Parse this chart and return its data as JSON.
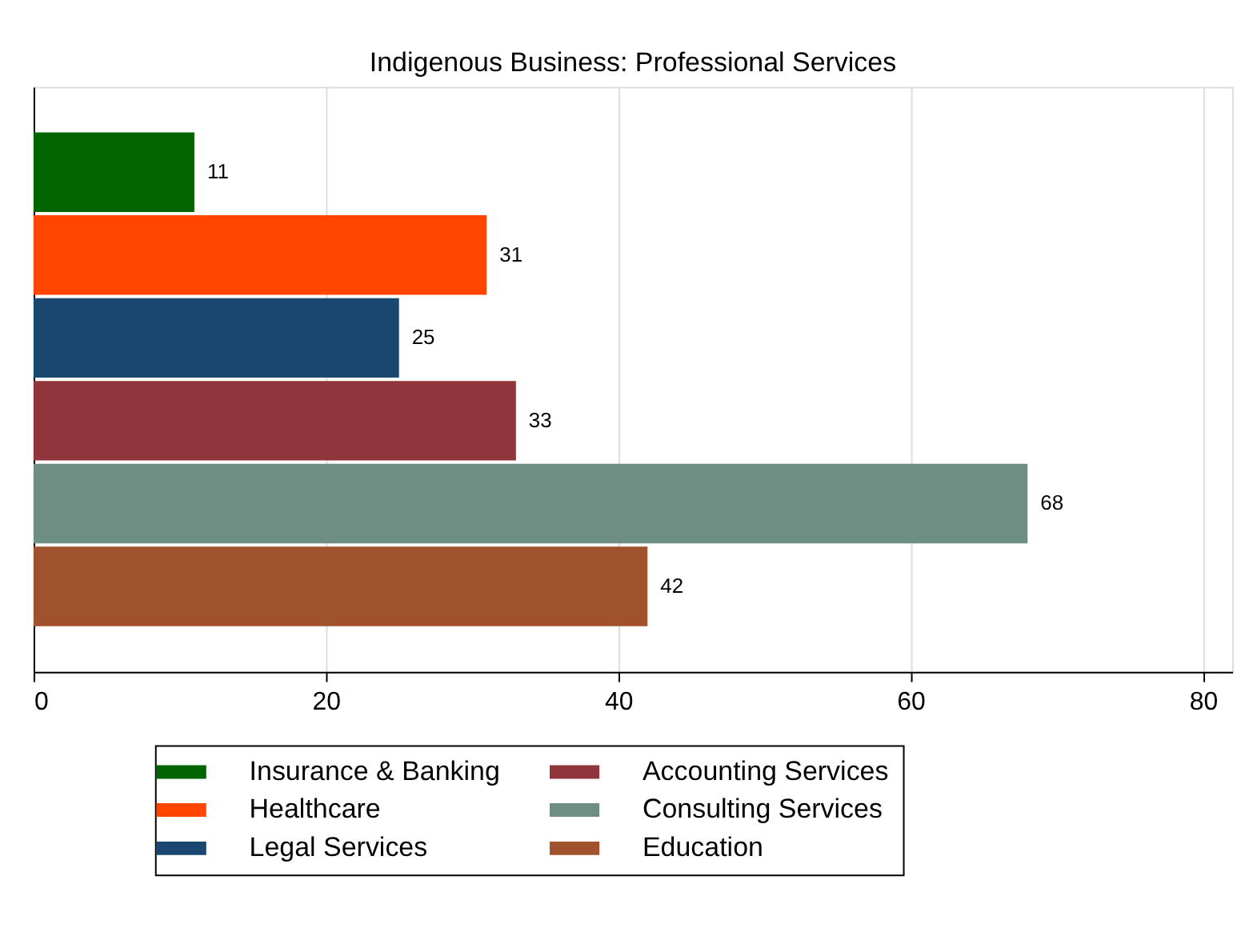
{
  "chart_data": {
    "type": "bar",
    "title": "Indigenous Business:  Professional Services",
    "orientation": "horizontal",
    "categories": [
      null
    ],
    "series": [
      {
        "name": "Insurance & Banking",
        "color": "#006400",
        "values": [
          11
        ]
      },
      {
        "name": "Healthcare",
        "color": "#ff4500",
        "values": [
          31
        ]
      },
      {
        "name": "Legal Services",
        "color": "#1a476f",
        "values": [
          25
        ]
      },
      {
        "name": "Accounting Services",
        "color": "#90353b",
        "values": [
          33
        ]
      },
      {
        "name": "Consulting Services",
        "color": "#6e8e84",
        "values": [
          68
        ]
      },
      {
        "name": "Education",
        "color": "#a0522d",
        "values": [
          42
        ]
      }
    ],
    "xlim": [
      0,
      82
    ],
    "xticks": [
      0,
      20,
      40,
      60,
      80
    ],
    "grid": "x",
    "legend": "bottom",
    "data_labels": true,
    "tick_labels": "x"
  }
}
